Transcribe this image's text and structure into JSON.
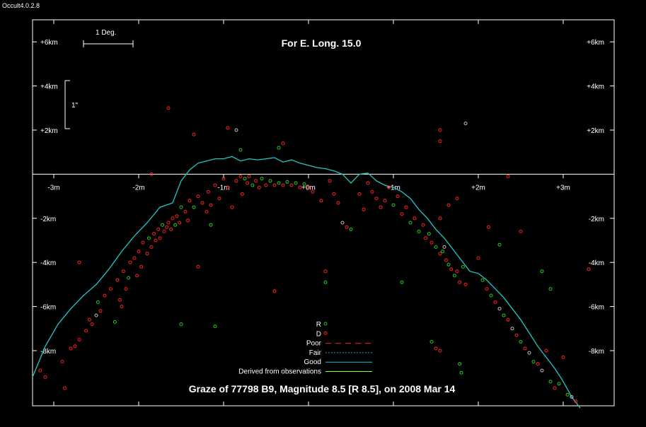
{
  "window": {
    "version": "Occult4.0.2.8"
  },
  "chart_data": {
    "type": "scatter",
    "title": "For E. Long. 15.0",
    "caption": "Graze of  77798 B9,  Magnitude 8.5 [R 8.5],  on 2008 Mar 14",
    "x_unit": "minutes",
    "y_unit": "km",
    "xlim": [
      -3.25,
      3.6
    ],
    "ylim": [
      -10.5,
      7.0
    ],
    "x_ticks": [
      {
        "v": -3,
        "label": "-3m"
      },
      {
        "v": -2,
        "label": "-2m"
      },
      {
        "v": -1,
        "label": "-1m"
      },
      {
        "v": 0,
        "label": "+0m"
      },
      {
        "v": 1,
        "label": "+1m"
      },
      {
        "v": 2,
        "label": "+2m"
      },
      {
        "v": 3,
        "label": "+3m"
      }
    ],
    "y_ticks": [
      {
        "v": 6,
        "label": "+6km"
      },
      {
        "v": 4,
        "label": "+4km"
      },
      {
        "v": 2,
        "label": "+2km"
      },
      {
        "v": -2,
        "label": "-2km"
      },
      {
        "v": -4,
        "label": "-4km"
      },
      {
        "v": -6,
        "label": "-6km"
      },
      {
        "v": -8,
        "label": "-8km"
      }
    ],
    "scale_bars": {
      "deg": "1 Deg.",
      "arcsec": "1\""
    },
    "colors": {
      "R": "#22cc22",
      "D": "#ff2020",
      "poor": "#ff2020",
      "fair": "#20a0c0",
      "good": "#20c8c8",
      "derived": "#90ff30",
      "other": "#c0c0c0"
    },
    "legend": [
      {
        "label": "R",
        "kind": "dot",
        "color": "#22cc22"
      },
      {
        "label": "D",
        "kind": "dot",
        "color": "#ff2020"
      },
      {
        "label": "Poor",
        "kind": "dash",
        "color": "#ff2020"
      },
      {
        "label": "Fair",
        "kind": "dot-line",
        "color": "#20a0c0"
      },
      {
        "label": "Good",
        "kind": "line",
        "color": "#20c8c8"
      },
      {
        "label": "Derived from observations",
        "kind": "line",
        "color": "#90ff30"
      }
    ],
    "profile_good": {
      "x": [
        -3.25,
        -3.1,
        -2.95,
        -2.8,
        -2.65,
        -2.5,
        -2.35,
        -2.2,
        -2.05,
        -1.9,
        -1.75,
        -1.6,
        -1.5,
        -1.4,
        -1.3,
        -1.2,
        -1.1,
        -1.0,
        -0.9,
        -0.8,
        -0.7,
        -0.6,
        -0.5,
        -0.4,
        -0.3,
        -0.2,
        -0.1,
        0.0,
        0.1,
        0.2,
        0.3,
        0.4,
        0.5,
        0.6,
        0.7,
        0.8,
        0.9,
        1.0,
        1.1,
        1.2,
        1.3,
        1.4,
        1.5,
        1.6,
        1.7,
        1.8,
        1.9,
        2.0,
        2.1,
        2.2,
        2.3,
        2.4,
        2.5,
        2.6,
        2.7,
        2.8,
        2.9,
        3.0,
        3.1,
        3.2
      ],
      "y": [
        -9.2,
        -7.8,
        -6.8,
        -6.1,
        -5.5,
        -5.0,
        -4.3,
        -3.5,
        -2.8,
        -2.2,
        -1.5,
        -1.3,
        -0.3,
        0.2,
        0.5,
        0.6,
        0.7,
        0.7,
        0.8,
        0.6,
        0.7,
        0.65,
        0.7,
        0.75,
        0.55,
        0.65,
        0.5,
        0.4,
        0.3,
        0.25,
        0.15,
        0.0,
        -0.4,
        0.0,
        0.05,
        -0.3,
        -0.5,
        -0.6,
        -0.8,
        -1.1,
        -1.6,
        -2.0,
        -2.5,
        -2.9,
        -3.4,
        -3.9,
        -4.4,
        -4.5,
        -4.8,
        -5.2,
        -5.6,
        -6.1,
        -6.6,
        -7.2,
        -7.8,
        -8.3,
        -8.8,
        -9.4,
        -10.1,
        -10.6
      ]
    },
    "observations": [
      {
        "x": -3.16,
        "y": -8.9,
        "e": "D"
      },
      {
        "x": -3.1,
        "y": -9.2,
        "e": "D"
      },
      {
        "x": -2.9,
        "y": -8.5,
        "e": "D"
      },
      {
        "x": -2.87,
        "y": -9.7,
        "e": "D"
      },
      {
        "x": -2.8,
        "y": -7.9,
        "e": "D"
      },
      {
        "x": -2.75,
        "y": -7.8,
        "e": "D"
      },
      {
        "x": -2.7,
        "y": -7.5,
        "e": "D"
      },
      {
        "x": -2.62,
        "y": -7.1,
        "e": "D"
      },
      {
        "x": -2.58,
        "y": -6.6,
        "e": "D"
      },
      {
        "x": -2.55,
        "y": -6.8,
        "e": "D"
      },
      {
        "x": -2.5,
        "y": -6.4,
        "e": "G"
      },
      {
        "x": -2.48,
        "y": -5.8,
        "e": "R"
      },
      {
        "x": -2.45,
        "y": -6.2,
        "e": "D"
      },
      {
        "x": -2.4,
        "y": -5.5,
        "e": "D"
      },
      {
        "x": -2.33,
        "y": -5.2,
        "e": "D"
      },
      {
        "x": -2.28,
        "y": -6.7,
        "e": "R"
      },
      {
        "x": -2.25,
        "y": -4.8,
        "e": "D"
      },
      {
        "x": -2.22,
        "y": -5.7,
        "e": "D"
      },
      {
        "x": -2.2,
        "y": -6.0,
        "e": "D"
      },
      {
        "x": -2.18,
        "y": -4.4,
        "e": "D"
      },
      {
        "x": -2.15,
        "y": -5.2,
        "e": "D"
      },
      {
        "x": -2.12,
        "y": -4.7,
        "e": "R"
      },
      {
        "x": -2.1,
        "y": -4.0,
        "e": "D"
      },
      {
        "x": -2.05,
        "y": -3.8,
        "e": "D"
      },
      {
        "x": -2.02,
        "y": -4.6,
        "e": "D"
      },
      {
        "x": -2.0,
        "y": -3.5,
        "e": "D"
      },
      {
        "x": -1.97,
        "y": -4.2,
        "e": "D"
      },
      {
        "x": -1.95,
        "y": -3.1,
        "e": "D"
      },
      {
        "x": -1.9,
        "y": -3.6,
        "e": "D"
      },
      {
        "x": -1.88,
        "y": -2.9,
        "e": "R"
      },
      {
        "x": -1.85,
        "y": -3.3,
        "e": "D"
      },
      {
        "x": -1.82,
        "y": -2.7,
        "e": "D"
      },
      {
        "x": -1.8,
        "y": -3.0,
        "e": "D"
      },
      {
        "x": -1.77,
        "y": -2.5,
        "e": "D"
      },
      {
        "x": -1.75,
        "y": -2.9,
        "e": "D"
      },
      {
        "x": -1.72,
        "y": -2.3,
        "e": "R"
      },
      {
        "x": -1.7,
        "y": -2.6,
        "e": "D"
      },
      {
        "x": -1.67,
        "y": -2.4,
        "e": "D"
      },
      {
        "x": -1.65,
        "y": -2.2,
        "e": "D"
      },
      {
        "x": -1.62,
        "y": -2.5,
        "e": "D"
      },
      {
        "x": -1.6,
        "y": -2.0,
        "e": "D"
      },
      {
        "x": -1.57,
        "y": -2.3,
        "e": "R"
      },
      {
        "x": -1.55,
        "y": -1.9,
        "e": "D"
      },
      {
        "x": -1.52,
        "y": -2.2,
        "e": "D"
      },
      {
        "x": -1.5,
        "y": -1.5,
        "e": "R"
      },
      {
        "x": -1.45,
        "y": -1.7,
        "e": "D"
      },
      {
        "x": -1.42,
        "y": -2.1,
        "e": "D"
      },
      {
        "x": -1.4,
        "y": -1.2,
        "e": "D"
      },
      {
        "x": -1.35,
        "y": -1.5,
        "e": "R"
      },
      {
        "x": -1.3,
        "y": -1.0,
        "e": "D"
      },
      {
        "x": -1.25,
        "y": -1.3,
        "e": "D"
      },
      {
        "x": -1.2,
        "y": -1.7,
        "e": "D"
      },
      {
        "x": -1.18,
        "y": -0.8,
        "e": "D"
      },
      {
        "x": -1.15,
        "y": -1.4,
        "e": "D"
      },
      {
        "x": -1.1,
        "y": -0.5,
        "e": "D"
      },
      {
        "x": -1.05,
        "y": -1.1,
        "e": "D"
      },
      {
        "x": -1.0,
        "y": -0.2,
        "e": "D"
      },
      {
        "x": -0.95,
        "y": -0.6,
        "e": "D"
      },
      {
        "x": -0.9,
        "y": -1.5,
        "e": "D"
      },
      {
        "x": -0.85,
        "y": -0.3,
        "e": "D"
      },
      {
        "x": -0.8,
        "y": -0.1,
        "e": "D"
      },
      {
        "x": -0.78,
        "y": -0.9,
        "e": "D"
      },
      {
        "x": -0.75,
        "y": -0.2,
        "e": "R"
      },
      {
        "x": -0.72,
        "y": -0.4,
        "e": "D"
      },
      {
        "x": -0.7,
        "y": -0.1,
        "e": "D"
      },
      {
        "x": -0.66,
        "y": -0.5,
        "e": "R"
      },
      {
        "x": -0.62,
        "y": -0.3,
        "e": "D"
      },
      {
        "x": -0.58,
        "y": -0.6,
        "e": "D"
      },
      {
        "x": -0.55,
        "y": -0.2,
        "e": "R"
      },
      {
        "x": -0.5,
        "y": -0.5,
        "e": "D"
      },
      {
        "x": -0.45,
        "y": -0.3,
        "e": "R"
      },
      {
        "x": -0.4,
        "y": -0.5,
        "e": "D"
      },
      {
        "x": -0.35,
        "y": -0.4,
        "e": "R"
      },
      {
        "x": -0.3,
        "y": -0.5,
        "e": "D"
      },
      {
        "x": -0.25,
        "y": -0.35,
        "e": "R"
      },
      {
        "x": -0.2,
        "y": -0.5,
        "e": "D"
      },
      {
        "x": -0.15,
        "y": -0.4,
        "e": "R"
      },
      {
        "x": -0.1,
        "y": -0.6,
        "e": "D"
      },
      {
        "x": -0.05,
        "y": -0.45,
        "e": "R"
      },
      {
        "x": 0.0,
        "y": -0.6,
        "e": "D"
      },
      {
        "x": 0.05,
        "y": -0.8,
        "e": "D"
      },
      {
        "x": 0.15,
        "y": -1.2,
        "e": "D"
      },
      {
        "x": 0.25,
        "y": -0.3,
        "e": "D"
      },
      {
        "x": 0.3,
        "y": -0.9,
        "e": "D"
      },
      {
        "x": 0.35,
        "y": -1.3,
        "e": "D"
      },
      {
        "x": 0.4,
        "y": -2.2,
        "e": "G"
      },
      {
        "x": 0.45,
        "y": -2.4,
        "e": "D"
      },
      {
        "x": 0.5,
        "y": -2.5,
        "e": "R"
      },
      {
        "x": 0.6,
        "y": -0.9,
        "e": "D"
      },
      {
        "x": 0.65,
        "y": -1.6,
        "e": "D"
      },
      {
        "x": 0.7,
        "y": -0.4,
        "e": "D"
      },
      {
        "x": 0.75,
        "y": -0.8,
        "e": "D"
      },
      {
        "x": 0.8,
        "y": -1.1,
        "e": "D"
      },
      {
        "x": 0.85,
        "y": -1.5,
        "e": "D"
      },
      {
        "x": 0.9,
        "y": -1.2,
        "e": "D"
      },
      {
        "x": 0.95,
        "y": -0.6,
        "e": "D"
      },
      {
        "x": 1.0,
        "y": -1.4,
        "e": "R"
      },
      {
        "x": 1.05,
        "y": -1.0,
        "e": "D"
      },
      {
        "x": 1.1,
        "y": -1.8,
        "e": "D"
      },
      {
        "x": 1.15,
        "y": -1.5,
        "e": "D"
      },
      {
        "x": 1.2,
        "y": -2.2,
        "e": "R"
      },
      {
        "x": 1.25,
        "y": -2.0,
        "e": "D"
      },
      {
        "x": 1.3,
        "y": -2.6,
        "e": "R"
      },
      {
        "x": 1.35,
        "y": -2.3,
        "e": "D"
      },
      {
        "x": 1.38,
        "y": -2.9,
        "e": "D"
      },
      {
        "x": 1.42,
        "y": -2.7,
        "e": "R"
      },
      {
        "x": 1.45,
        "y": -3.1,
        "e": "D"
      },
      {
        "x": 1.5,
        "y": -3.3,
        "e": "R"
      },
      {
        "x": 1.55,
        "y": -3.6,
        "e": "D"
      },
      {
        "x": 1.58,
        "y": -3.5,
        "e": "R"
      },
      {
        "x": 1.62,
        "y": -3.9,
        "e": "D"
      },
      {
        "x": 1.65,
        "y": -4.1,
        "e": "R"
      },
      {
        "x": 1.68,
        "y": -4.3,
        "e": "D"
      },
      {
        "x": 1.72,
        "y": -4.6,
        "e": "R"
      },
      {
        "x": 1.75,
        "y": -4.4,
        "e": "D"
      },
      {
        "x": 1.78,
        "y": -4.9,
        "e": "D"
      },
      {
        "x": 1.82,
        "y": -4.2,
        "e": "R"
      },
      {
        "x": 1.85,
        "y": -5.0,
        "e": "D"
      },
      {
        "x": 1.6,
        "y": -3.3,
        "e": "G"
      },
      {
        "x": 1.55,
        "y": -2.0,
        "e": "D"
      },
      {
        "x": 1.65,
        "y": -1.4,
        "e": "D"
      },
      {
        "x": 1.75,
        "y": -1.1,
        "e": "D"
      },
      {
        "x": 1.5,
        "y": -7.9,
        "e": "D"
      },
      {
        "x": 1.55,
        "y": -8.0,
        "e": "D"
      },
      {
        "x": 1.78,
        "y": -8.6,
        "e": "R"
      },
      {
        "x": 1.8,
        "y": -9.0,
        "e": "R"
      },
      {
        "x": 1.45,
        "y": -7.6,
        "e": "R"
      },
      {
        "x": 1.1,
        "y": -4.9,
        "e": "R"
      },
      {
        "x": 2.0,
        "y": -3.8,
        "e": "D"
      },
      {
        "x": 2.05,
        "y": -4.8,
        "e": "R"
      },
      {
        "x": 2.1,
        "y": -5.2,
        "e": "D"
      },
      {
        "x": 2.12,
        "y": -2.4,
        "e": "D"
      },
      {
        "x": 2.15,
        "y": -5.5,
        "e": "R"
      },
      {
        "x": 2.2,
        "y": -5.8,
        "e": "D"
      },
      {
        "x": 2.25,
        "y": -6.1,
        "e": "G"
      },
      {
        "x": 2.3,
        "y": -6.4,
        "e": "R"
      },
      {
        "x": 2.35,
        "y": -6.6,
        "e": "D"
      },
      {
        "x": 2.4,
        "y": -7.0,
        "e": "G"
      },
      {
        "x": 2.45,
        "y": -7.3,
        "e": "D"
      },
      {
        "x": 2.5,
        "y": -7.6,
        "e": "R"
      },
      {
        "x": 2.55,
        "y": -7.9,
        "e": "D"
      },
      {
        "x": 2.6,
        "y": -8.1,
        "e": "G"
      },
      {
        "x": 2.65,
        "y": -8.5,
        "e": "R"
      },
      {
        "x": 2.7,
        "y": -8.6,
        "e": "D"
      },
      {
        "x": 2.75,
        "y": -8.9,
        "e": "G"
      },
      {
        "x": 2.8,
        "y": -8.0,
        "e": "D"
      },
      {
        "x": 2.85,
        "y": -9.4,
        "e": "R"
      },
      {
        "x": 2.9,
        "y": -9.7,
        "e": "D"
      },
      {
        "x": 2.95,
        "y": -9.5,
        "e": "R"
      },
      {
        "x": 3.0,
        "y": -8.3,
        "e": "D"
      },
      {
        "x": 3.05,
        "y": -10.0,
        "e": "R"
      },
      {
        "x": 3.1,
        "y": -10.1,
        "e": "G"
      },
      {
        "x": 3.15,
        "y": -10.3,
        "e": "D"
      },
      {
        "x": 2.75,
        "y": -4.4,
        "e": "R"
      },
      {
        "x": 2.85,
        "y": -5.2,
        "e": "R"
      },
      {
        "x": 2.5,
        "y": -2.6,
        "e": "D"
      },
      {
        "x": 3.3,
        "y": -4.3,
        "e": "D"
      },
      {
        "x": 2.35,
        "y": -0.1,
        "e": "D"
      },
      {
        "x": 2.25,
        "y": -3.2,
        "e": "R"
      },
      {
        "x": -1.65,
        "y": 3.0,
        "e": "D"
      },
      {
        "x": -0.95,
        "y": 2.1,
        "e": "D"
      },
      {
        "x": -0.85,
        "y": 2.0,
        "e": "G"
      },
      {
        "x": -0.35,
        "y": 1.2,
        "e": "R"
      },
      {
        "x": -0.3,
        "y": 1.4,
        "e": "D"
      },
      {
        "x": -0.8,
        "y": 1.1,
        "e": "R"
      },
      {
        "x": 1.55,
        "y": 2.0,
        "e": "D"
      },
      {
        "x": 1.55,
        "y": 1.5,
        "e": "D"
      },
      {
        "x": 1.85,
        "y": 2.3,
        "e": "G"
      },
      {
        "x": -1.35,
        "y": 1.8,
        "e": "D"
      },
      {
        "x": -1.85,
        "y": 0.0,
        "e": "D"
      },
      {
        "x": -1.3,
        "y": -4.2,
        "e": "D"
      },
      {
        "x": -0.4,
        "y": -5.3,
        "e": "D"
      },
      {
        "x": -1.1,
        "y": -6.9,
        "e": "R"
      },
      {
        "x": -1.5,
        "y": -6.8,
        "e": "R"
      },
      {
        "x": -2.7,
        "y": -4.0,
        "e": "D"
      },
      {
        "x": -1.15,
        "y": -2.3,
        "e": "R"
      },
      {
        "x": 0.2,
        "y": -4.4,
        "e": "D"
      },
      {
        "x": 0.2,
        "y": -4.9,
        "e": "R"
      }
    ]
  }
}
